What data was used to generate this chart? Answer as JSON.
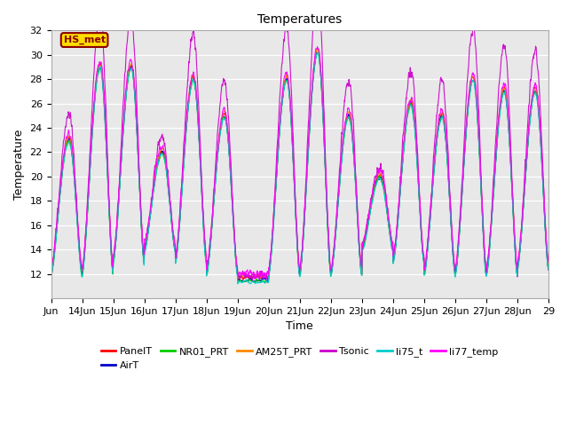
{
  "title": "Temperatures",
  "xlabel": "Time",
  "ylabel": "Temperature",
  "ylim": [
    10,
    32
  ],
  "xlim_days": [
    0,
    16
  ],
  "bg_color": "#e8e8e8",
  "annotation_text": "HS_met",
  "annotation_bg": "#ffdd00",
  "annotation_border": "#8b0000",
  "series": [
    {
      "label": "PanelT",
      "color": "#ff0000"
    },
    {
      "label": "AirT",
      "color": "#0000cc"
    },
    {
      "label": "NR01_PRT",
      "color": "#00cc00"
    },
    {
      "label": "AM25T_PRT",
      "color": "#ff8800"
    },
    {
      "label": "Tsonic",
      "color": "#cc00cc"
    },
    {
      "label": "li75_t",
      "color": "#00cccc"
    },
    {
      "label": "li77_temp",
      "color": "#ff00ff"
    }
  ],
  "xtick_labels": [
    "Jun",
    "14Jun",
    "15Jun",
    "16Jun",
    "17Jun",
    "18Jun",
    "19Jun",
    "20Jun",
    "21Jun",
    "22Jun",
    "23Jun",
    "24Jun",
    "25Jun",
    "26Jun",
    "27Jun",
    "28Jun",
    "29"
  ],
  "xtick_positions": [
    0,
    1,
    2,
    3,
    4,
    5,
    6,
    7,
    8,
    9,
    10,
    11,
    12,
    13,
    14,
    15,
    16
  ],
  "ytick_labels": [
    "12",
    "14",
    "16",
    "18",
    "20",
    "22",
    "24",
    "26",
    "28",
    "30",
    "32"
  ],
  "ytick_positions": [
    12,
    14,
    16,
    18,
    20,
    22,
    24,
    26,
    28,
    30,
    32
  ]
}
